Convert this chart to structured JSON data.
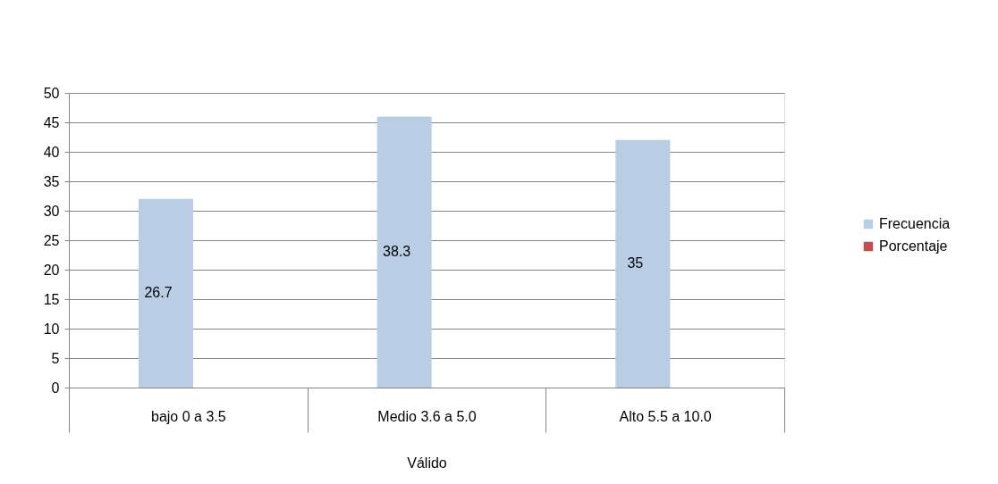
{
  "chart_data": {
    "type": "bar",
    "categories": [
      "bajo 0 a  3.5",
      "Medio 3.6 a 5.0",
      "Alto 5.5 a 10.0"
    ],
    "xlabel": "Válido",
    "series": [
      {
        "name": "Frecuencia",
        "color": "#b9cde5",
        "values": [
          32,
          46,
          42
        ]
      },
      {
        "name": "Porcentaje",
        "color": "#c0504d",
        "values": [
          null,
          null,
          null
        ]
      }
    ],
    "annotations": [
      "26.7",
      "38.3",
      "35"
    ],
    "ylim": [
      0,
      50
    ],
    "yticks": [
      0,
      5,
      10,
      15,
      20,
      25,
      30,
      35,
      40,
      45,
      50
    ],
    "grid": "y",
    "legend": "right"
  }
}
